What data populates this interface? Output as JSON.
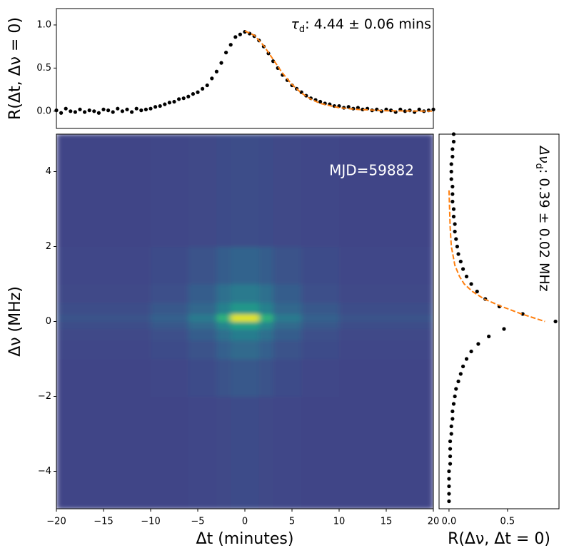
{
  "chart_data": [
    {
      "type": "scatter",
      "ylabel": "R(Δt, Δν = 0)",
      "annotation": {
        "symbol": "τ",
        "subscript": "d",
        "text": ": 4.44 ± 0.06 mins"
      },
      "xlim": [
        -20,
        20
      ],
      "ylim": [
        -0.2,
        1.19
      ],
      "yticks": [
        {
          "value": 0,
          "label": "0.0"
        },
        0.5,
        {
          "value": 1,
          "label": "1.0"
        }
      ],
      "series": [
        {
          "color": "#000000",
          "style": "dots",
          "x": [
            -20,
            -19.5,
            -19,
            -18.5,
            -18,
            -17.5,
            -17,
            -16.5,
            -16,
            -15.5,
            -15,
            -14.5,
            -14,
            -13.5,
            -13,
            -12.5,
            -12,
            -11.5,
            -11,
            -10.5,
            -10,
            -9.5,
            -9,
            -8.5,
            -8,
            -7.5,
            -7,
            -6.5,
            -6,
            -5.5,
            -5,
            -4.5,
            -4,
            -3.5,
            -3,
            -2.5,
            -2,
            -1.5,
            -1,
            -0.5,
            0,
            0.5,
            1,
            1.5,
            2,
            2.5,
            3,
            3.5,
            4,
            4.5,
            5,
            5.5,
            6,
            6.5,
            7,
            7.5,
            8,
            8.5,
            9,
            9.5,
            10,
            10.5,
            11,
            11.5,
            12,
            12.5,
            13,
            13.5,
            14,
            14.5,
            15,
            15.5,
            16,
            16.5,
            17,
            17.5,
            18,
            18.5,
            19,
            19.5,
            20
          ],
          "values": [
            0.01,
            -0.02,
            0.03,
            0.0,
            -0.01,
            0.02,
            -0.01,
            0.01,
            0.0,
            -0.02,
            0.02,
            0.01,
            -0.01,
            0.03,
            0.0,
            0.02,
            -0.01,
            0.03,
            0.01,
            0.02,
            0.03,
            0.05,
            0.06,
            0.08,
            0.1,
            0.11,
            0.14,
            0.15,
            0.17,
            0.2,
            0.22,
            0.26,
            0.3,
            0.38,
            0.46,
            0.56,
            0.68,
            0.77,
            0.86,
            0.89,
            0.92,
            0.9,
            0.87,
            0.82,
            0.75,
            0.67,
            0.58,
            0.5,
            0.42,
            0.36,
            0.3,
            0.26,
            0.22,
            0.18,
            0.15,
            0.13,
            0.11,
            0.09,
            0.08,
            0.06,
            0.06,
            0.04,
            0.05,
            0.03,
            0.04,
            0.02,
            0.03,
            0.01,
            0.02,
            0.0,
            0.02,
            0.01,
            -0.01,
            0.02,
            0.0,
            0.01,
            -0.01,
            0.02,
            0.0,
            0.01,
            0.02
          ]
        },
        {
          "color": "#ff7f0e",
          "style": "dashed",
          "x": [
            0,
            1,
            2,
            3,
            4,
            5,
            6,
            7,
            8,
            10,
            12,
            15,
            20
          ],
          "values": [
            0.93,
            0.88,
            0.76,
            0.6,
            0.44,
            0.31,
            0.21,
            0.14,
            0.09,
            0.04,
            0.02,
            0.005,
            0.0
          ]
        }
      ]
    },
    {
      "type": "heatmap",
      "xlabel": "Δt (minutes)",
      "ylabel": "Δν (MHz)",
      "annotation": "MJD=59882",
      "xlim": [
        -20,
        20
      ],
      "ylim": [
        -5,
        5
      ],
      "xticks": [
        {
          "value": -20,
          "label": "−20"
        },
        {
          "value": -15,
          "label": "−15"
        },
        {
          "value": -10,
          "label": "−10"
        },
        {
          "value": -5,
          "label": "−5"
        },
        0,
        5,
        10,
        15,
        20
      ],
      "yticks": [
        {
          "value": -4,
          "label": "−4"
        },
        {
          "value": -2,
          "label": "−2"
        },
        0,
        2,
        4
      ],
      "colormap": "viridis",
      "clim": [
        -0.1,
        1
      ],
      "x_edges": [
        -20,
        -10,
        -6,
        -3,
        -1.5,
        0,
        1.5,
        3,
        6,
        10,
        20
      ],
      "y_edges": [
        -5,
        -2,
        -1,
        -0.5,
        -0.2,
        0,
        0.2,
        0.5,
        1,
        2,
        5
      ],
      "values": [
        [
          0.12,
          0.12,
          0.13,
          0.14,
          0.15,
          0.15,
          0.14,
          0.13,
          0.12,
          0.12
        ],
        [
          0.12,
          0.13,
          0.15,
          0.18,
          0.2,
          0.2,
          0.18,
          0.15,
          0.13,
          0.12
        ],
        [
          0.13,
          0.15,
          0.18,
          0.24,
          0.28,
          0.28,
          0.24,
          0.18,
          0.15,
          0.13
        ],
        [
          0.14,
          0.17,
          0.22,
          0.3,
          0.36,
          0.36,
          0.3,
          0.22,
          0.17,
          0.14
        ],
        [
          0.16,
          0.2,
          0.28,
          0.4,
          0.52,
          0.52,
          0.4,
          0.28,
          0.2,
          0.16
        ],
        [
          0.18,
          0.24,
          0.35,
          0.6,
          0.95,
          0.95,
          0.6,
          0.35,
          0.24,
          0.18
        ],
        [
          0.16,
          0.2,
          0.27,
          0.38,
          0.48,
          0.48,
          0.38,
          0.27,
          0.2,
          0.16
        ],
        [
          0.14,
          0.17,
          0.22,
          0.3,
          0.35,
          0.35,
          0.3,
          0.22,
          0.17,
          0.14
        ],
        [
          0.13,
          0.15,
          0.18,
          0.22,
          0.25,
          0.25,
          0.22,
          0.18,
          0.15,
          0.13
        ],
        [
          0.12,
          0.13,
          0.14,
          0.15,
          0.16,
          0.16,
          0.15,
          0.14,
          0.13,
          0.12
        ]
      ]
    },
    {
      "type": "scatter",
      "value_axis": "x",
      "xlabel": "R(Δν, Δt = 0)",
      "annotation": {
        "symbol": "Δν",
        "subscript": "d",
        "text": ": 0.39 ± 0.02 MHz"
      },
      "xlim": [
        -0.085,
        0.94
      ],
      "ylim": [
        -5,
        5
      ],
      "xticks": [
        {
          "value": 0,
          "label": "0.0"
        },
        0.5
      ],
      "series": [
        {
          "color": "#000000",
          "style": "dots",
          "y": [
            -4.8,
            -4.6,
            -4.4,
            -4.2,
            -4.0,
            -3.8,
            -3.6,
            -3.4,
            -3.2,
            -3.0,
            -2.8,
            -2.6,
            -2.4,
            -2.2,
            -2.0,
            -1.8,
            -1.6,
            -1.4,
            -1.2,
            -1.0,
            -0.8,
            -0.6,
            -0.4,
            -0.2,
            0.0,
            0.2,
            0.4,
            0.6,
            0.8,
            1.0,
            1.2,
            1.4,
            1.6,
            1.8,
            2.0,
            2.2,
            2.4,
            2.6,
            2.8,
            3.0,
            3.2,
            3.4,
            3.6,
            3.8,
            4.0,
            4.2,
            4.4,
            4.6,
            4.8,
            5.0
          ],
          "values": [
            0.0,
            0.0,
            0.0,
            0.0,
            0.0,
            0.01,
            0.01,
            0.01,
            0.01,
            0.02,
            0.02,
            0.03,
            0.03,
            0.04,
            0.05,
            0.06,
            0.08,
            0.1,
            0.12,
            0.15,
            0.19,
            0.25,
            0.34,
            0.47,
            0.91,
            0.63,
            0.43,
            0.31,
            0.24,
            0.19,
            0.15,
            0.12,
            0.1,
            0.08,
            0.07,
            0.06,
            0.05,
            0.05,
            0.04,
            0.04,
            0.03,
            0.03,
            0.03,
            0.02,
            0.02,
            0.02,
            0.03,
            0.03,
            0.04,
            0.04
          ]
        },
        {
          "color": "#ff7f0e",
          "style": "dashed",
          "y": [
            3.5,
            2.5,
            2,
            1.5,
            1.2,
            1,
            0.8,
            0.6,
            0.4,
            0.2,
            0.1,
            0
          ],
          "values": [
            0.0,
            0.01,
            0.02,
            0.05,
            0.09,
            0.13,
            0.2,
            0.3,
            0.45,
            0.62,
            0.72,
            0.82
          ]
        }
      ]
    }
  ]
}
